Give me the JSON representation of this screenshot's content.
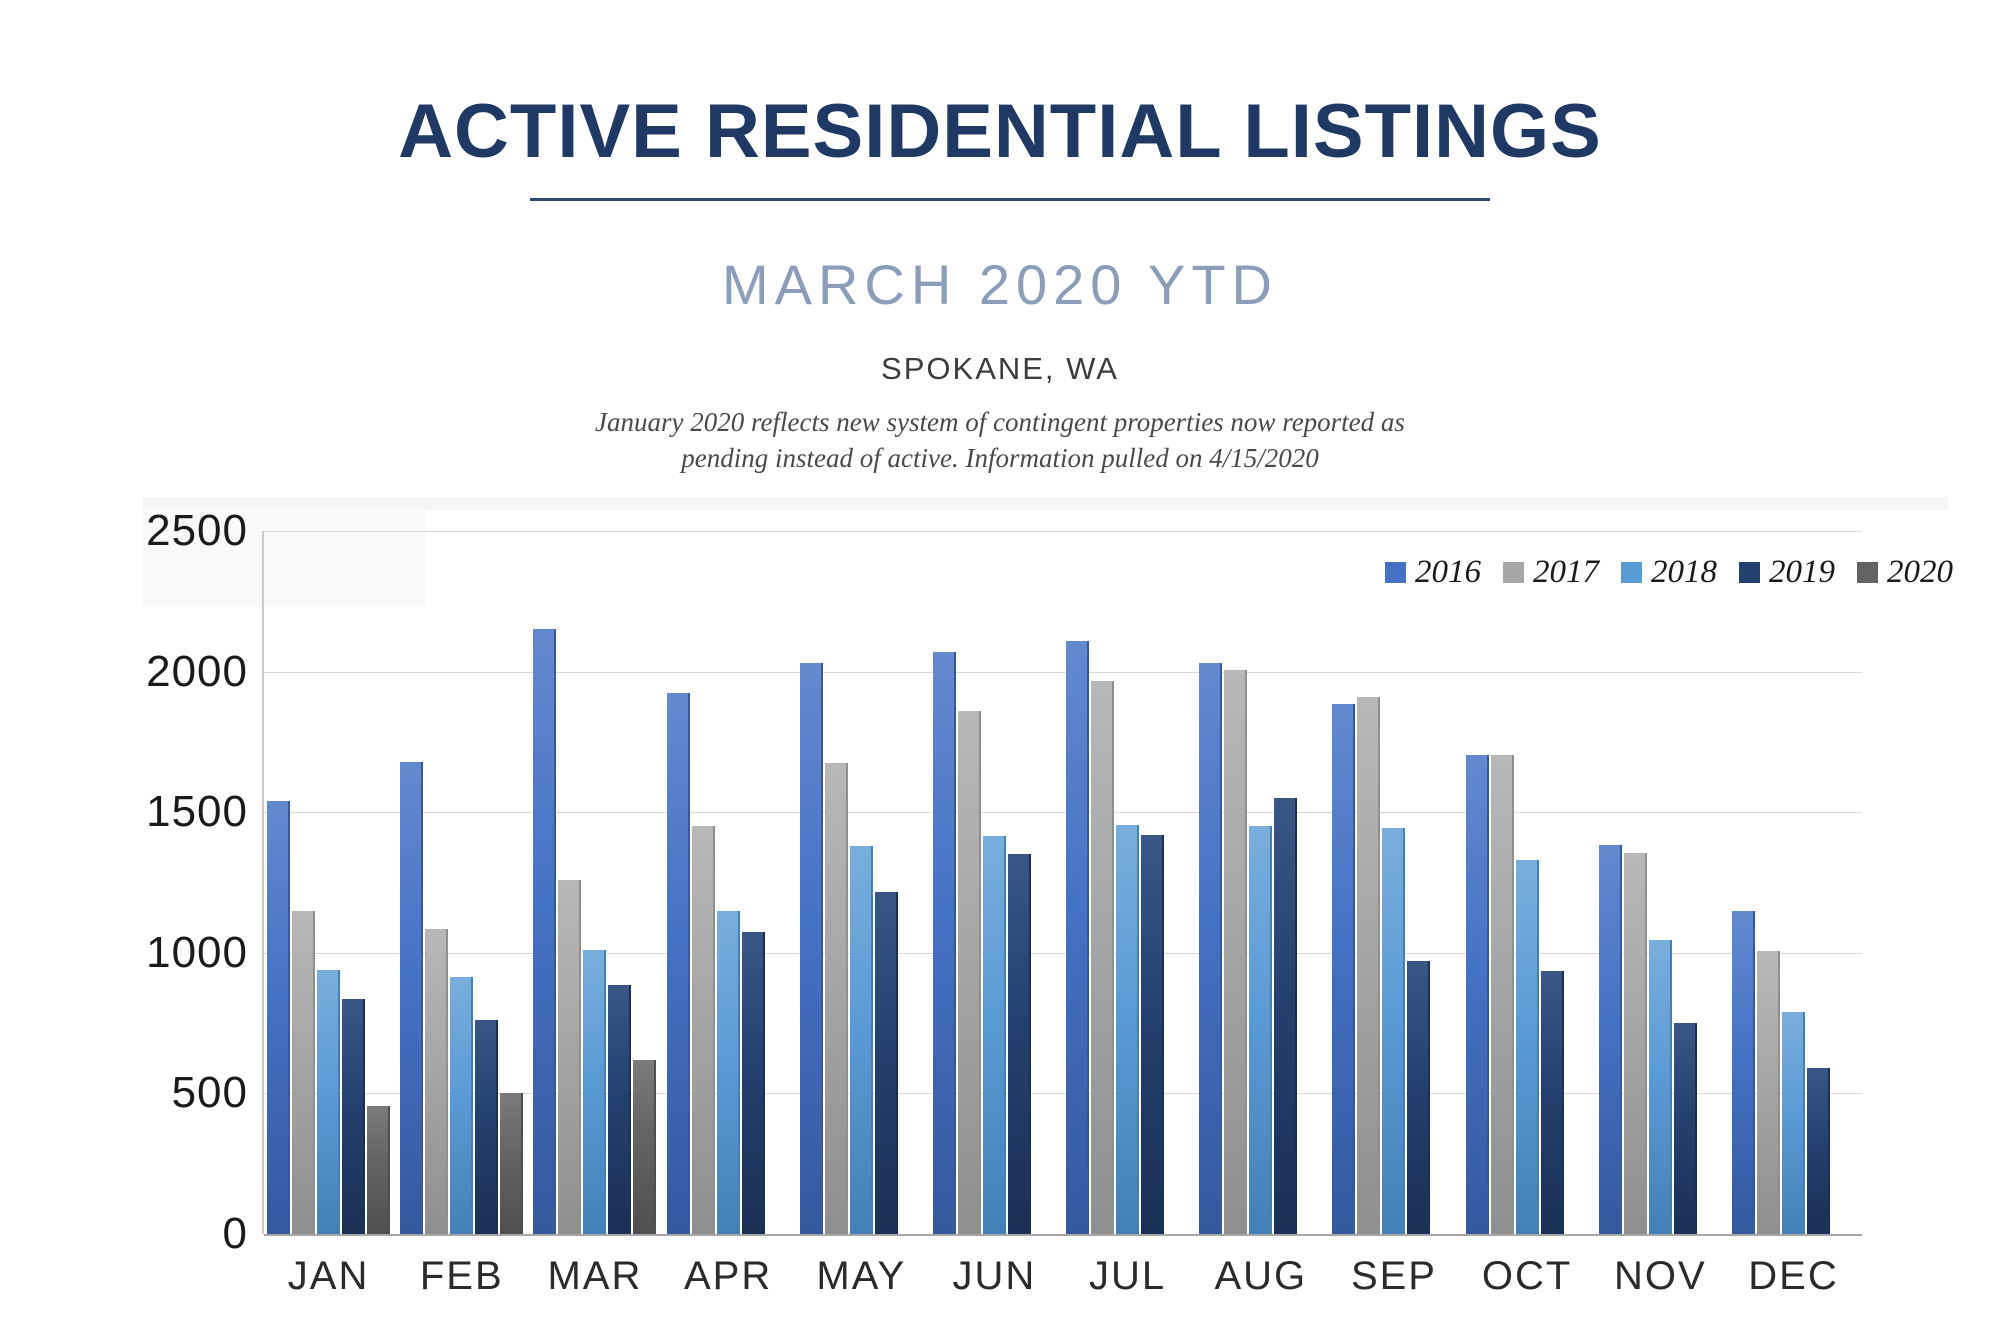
{
  "header": {
    "title": "ACTIVE RESIDENTIAL LISTINGS",
    "subtitle": "MARCH 2020 YTD",
    "location": "SPOKANE, WA",
    "note_line1": "January 2020 reflects new system of contingent properties now reported as",
    "note_line2": "pending instead of active.  Information pulled on 4/15/2020"
  },
  "colors": {
    "title_navy": "#1F3864",
    "subtitle_bluegray": "#8B9DB9",
    "gridline": "#D9D9D9",
    "axis_line": "#A8A8A8"
  },
  "chart_data": {
    "type": "bar",
    "title": "ACTIVE RESIDENTIAL LISTINGS",
    "xlabel": "",
    "ylabel": "",
    "ylim": [
      0,
      2500
    ],
    "ytick_interval": 500,
    "yticks": [
      "0",
      "500",
      "1000",
      "1500",
      "2000",
      "2500"
    ],
    "grid": true,
    "legend_position": "top-right",
    "categories": [
      "JAN",
      "FEB",
      "MAR",
      "APR",
      "MAY",
      "JUN",
      "JUL",
      "AUG",
      "SEP",
      "OCT",
      "NOV",
      "DEC"
    ],
    "series": [
      {
        "name": "2016",
        "color": "#4472C4",
        "color_light": "#6489CF",
        "color_dark": "#35589E",
        "values": [
          1540,
          1680,
          2150,
          1925,
          2030,
          2070,
          2110,
          2030,
          1885,
          1705,
          1385,
          1150
        ]
      },
      {
        "name": "2017",
        "color": "#A6A6A6",
        "color_light": "#B8B8B8",
        "color_dark": "#8F8F8F",
        "values": [
          1150,
          1085,
          1260,
          1450,
          1675,
          1860,
          1965,
          2005,
          1910,
          1705,
          1355,
          1005
        ]
      },
      {
        "name": "2018",
        "color": "#5B9BD5",
        "color_light": "#79AEDD",
        "color_dark": "#4380B8",
        "values": [
          940,
          915,
          1010,
          1150,
          1380,
          1415,
          1455,
          1450,
          1445,
          1330,
          1045,
          790
        ]
      },
      {
        "name": "2019",
        "color": "#24406E",
        "color_light": "#3A5685",
        "color_dark": "#1A3055",
        "values": [
          835,
          760,
          885,
          1075,
          1215,
          1350,
          1420,
          1550,
          970,
          935,
          750,
          590
        ]
      },
      {
        "name": "2020",
        "color": "#636363",
        "color_light": "#7B7B7B",
        "color_dark": "#4F4F4F",
        "values": [
          455,
          500,
          620,
          null,
          null,
          null,
          null,
          null,
          null,
          null,
          null,
          null
        ]
      }
    ]
  }
}
